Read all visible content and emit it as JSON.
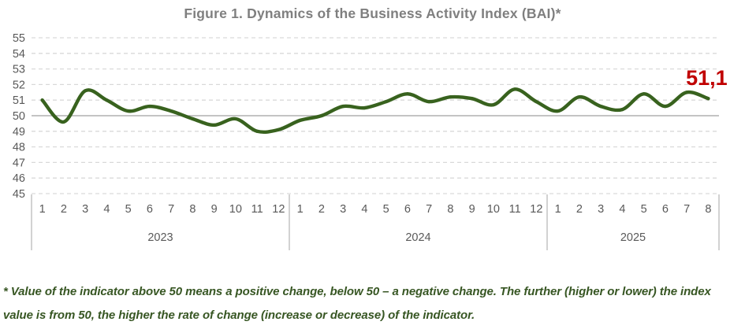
{
  "title": "Figure 1. Dynamics of the Business Activity Index (BAI)*",
  "footnote": "* Value of the indicator above 50 means a positive change, below 50 – a negative change. The further (higher or lower) the index value is from 50, the higher the rate of change (increase or decrease) of the indicator.",
  "chart_data": {
    "type": "line",
    "title": "Figure 1. Dynamics of the Business Activity Index (BAI)*",
    "ylim": [
      45,
      55
    ],
    "yticks": [
      55,
      54,
      53,
      52,
      51,
      50,
      49,
      48,
      47,
      46,
      45
    ],
    "reference_line": 50,
    "grid": "dashed-horizontal",
    "legend_position": "none",
    "groups": [
      {
        "year": "2023",
        "months": [
          "1",
          "2",
          "3",
          "4",
          "5",
          "6",
          "7",
          "8",
          "9",
          "10",
          "11",
          "12"
        ]
      },
      {
        "year": "2024",
        "months": [
          "1",
          "2",
          "3",
          "4",
          "5",
          "6",
          "7",
          "8",
          "9",
          "10",
          "11",
          "12"
        ]
      },
      {
        "year": "2025",
        "months": [
          "1",
          "2",
          "3",
          "4",
          "5",
          "6",
          "7",
          "8"
        ]
      }
    ],
    "series": [
      {
        "name": "Business Activity Index (BAI)",
        "values": [
          51.0,
          49.6,
          51.6,
          51.0,
          50.3,
          50.6,
          50.3,
          49.8,
          49.4,
          49.8,
          49.0,
          49.1,
          49.7,
          50.0,
          50.6,
          50.5,
          50.9,
          51.4,
          50.9,
          51.2,
          51.1,
          50.7,
          51.7,
          50.9,
          50.3,
          51.2,
          50.6,
          50.4,
          51.4,
          50.6,
          51.5,
          51.1
        ]
      }
    ],
    "last_value_label": "51,1",
    "colors": {
      "line": "#38621e",
      "last_value_label": "#c00000",
      "grid_dashed": "#d9d9d9",
      "reference_line": "#a0a0a0",
      "separator": "#a6a6a6",
      "tick_text": "#595959",
      "title_text": "#7f7f7f",
      "footnote_text": "#375623"
    }
  }
}
